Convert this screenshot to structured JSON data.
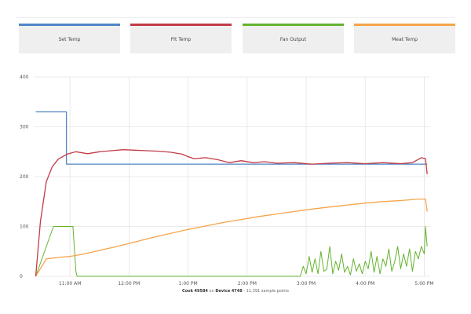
{
  "colors": {
    "set_temp": "#4f86c6",
    "pit_temp": "#c23b45",
    "fan_output": "#63b32e",
    "meat_temp": "#f5a44a",
    "grid": "#e4e4e4",
    "legend_bg": "#efefef"
  },
  "legend": {
    "items": [
      {
        "label": "Set Temp",
        "color": "#4f86c6"
      },
      {
        "label": "Pit Temp",
        "color": "#c23b45"
      },
      {
        "label": "Fan Output",
        "color": "#63b32e"
      },
      {
        "label": "Meat Temp",
        "color": "#f5a44a"
      }
    ]
  },
  "caption": {
    "cook_word": "Cook",
    "cook_id": "49584",
    "on_word": "on",
    "device_word": "Device",
    "device_id": "4748",
    "sample_text": "- 11,391 sample points"
  },
  "chart_data": {
    "type": "line",
    "xlabel": "",
    "ylabel": "",
    "x_unit": "hour of day (decimal)",
    "xlim": [
      10.4,
      17.1
    ],
    "ylim": [
      0,
      400
    ],
    "y_ticks": [
      0,
      100,
      200,
      300,
      400
    ],
    "x_ticks": [
      {
        "value": 11,
        "label": "11:00 AM"
      },
      {
        "value": 12,
        "label": "12:00 PM"
      },
      {
        "value": 13,
        "label": "1:00 PM"
      },
      {
        "value": 14,
        "label": "2:00 PM"
      },
      {
        "value": 15,
        "label": "3:00 PM"
      },
      {
        "value": 16,
        "label": "4:00 PM"
      },
      {
        "value": 17,
        "label": "5:00 PM"
      }
    ],
    "grid": true,
    "legend_position": "top",
    "series": [
      {
        "name": "Set Temp",
        "x": [
          10.42,
          10.94,
          10.94,
          17.05
        ],
        "y": [
          330,
          330,
          225,
          225
        ]
      },
      {
        "name": "Pit Temp",
        "x": [
          10.42,
          10.5,
          10.6,
          10.7,
          10.8,
          10.95,
          11.1,
          11.3,
          11.5,
          11.7,
          11.9,
          12.1,
          12.3,
          12.5,
          12.7,
          12.9,
          13.0,
          13.1,
          13.3,
          13.5,
          13.7,
          13.9,
          14.1,
          14.3,
          14.5,
          14.8,
          15.1,
          15.4,
          15.7,
          16.0,
          16.3,
          16.6,
          16.8,
          16.95,
          17.02,
          17.05
        ],
        "y": [
          0,
          110,
          190,
          220,
          235,
          245,
          250,
          246,
          250,
          252,
          254,
          253,
          252,
          251,
          249,
          245,
          240,
          236,
          238,
          234,
          228,
          232,
          228,
          230,
          227,
          228,
          225,
          227,
          228,
          226,
          228,
          226,
          228,
          238,
          236,
          205
        ]
      },
      {
        "name": "Fan Output",
        "x": [
          10.42,
          10.72,
          11.05,
          11.1,
          11.12,
          14.9,
          14.95,
          15.0,
          15.05,
          15.1,
          15.15,
          15.2,
          15.25,
          15.3,
          15.35,
          15.4,
          15.45,
          15.5,
          15.55,
          15.6,
          15.65,
          15.7,
          15.75,
          15.8,
          15.85,
          15.9,
          15.95,
          16.0,
          16.05,
          16.1,
          16.15,
          16.2,
          16.25,
          16.3,
          16.35,
          16.4,
          16.45,
          16.5,
          16.55,
          16.6,
          16.65,
          16.7,
          16.75,
          16.8,
          16.85,
          16.9,
          16.95,
          17.0,
          17.02,
          17.05
        ],
        "y": [
          0,
          100,
          100,
          10,
          0,
          0,
          20,
          5,
          40,
          8,
          35,
          5,
          50,
          10,
          15,
          60,
          5,
          30,
          12,
          45,
          8,
          20,
          3,
          35,
          10,
          25,
          5,
          30,
          15,
          50,
          8,
          40,
          5,
          35,
          20,
          55,
          10,
          30,
          60,
          15,
          45,
          20,
          55,
          10,
          50,
          35,
          60,
          45,
          100,
          60
        ]
      },
      {
        "name": "Meat Temp",
        "x": [
          10.42,
          10.6,
          10.8,
          11.0,
          11.2,
          11.5,
          11.8,
          12.1,
          12.4,
          12.7,
          13.0,
          13.3,
          13.6,
          13.9,
          14.2,
          14.5,
          14.8,
          15.1,
          15.4,
          15.7,
          16.0,
          16.3,
          16.6,
          16.9,
          17.0,
          17.02,
          17.05
        ],
        "y": [
          0,
          35,
          38,
          40,
          44,
          52,
          60,
          69,
          78,
          86,
          94,
          101,
          108,
          114,
          120,
          125,
          130,
          135,
          139,
          143,
          147,
          150,
          152,
          155,
          155,
          155,
          130
        ]
      }
    ]
  }
}
